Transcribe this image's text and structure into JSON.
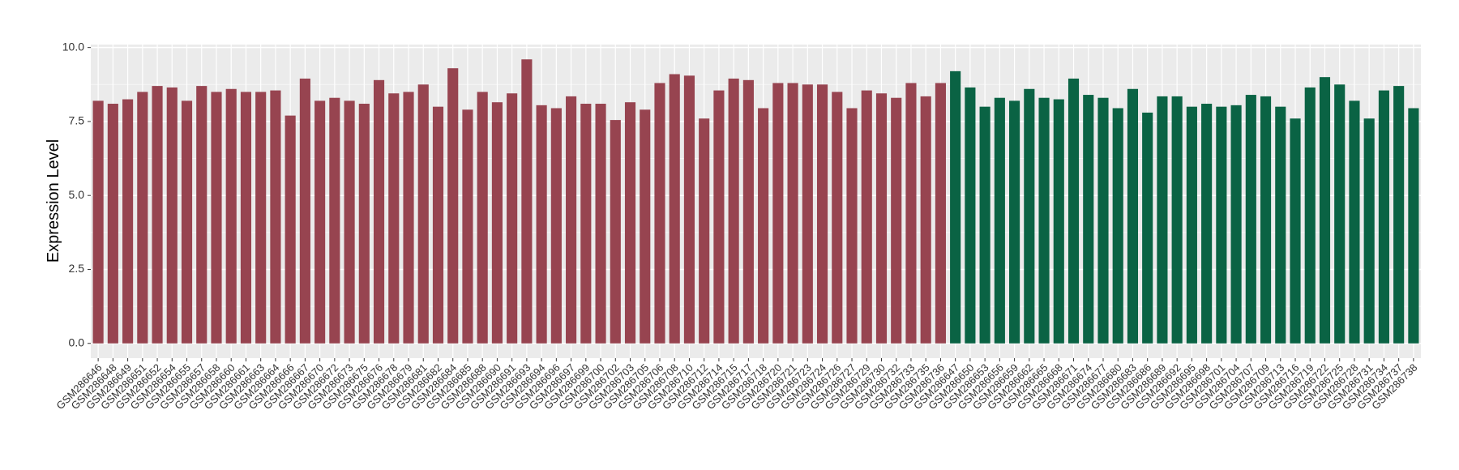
{
  "chart_data": {
    "type": "bar",
    "y_label": "Expression Level",
    "categories": [
      "GSM286646",
      "GSM286648",
      "GSM286649",
      "GSM286651",
      "GSM286652",
      "GSM286654",
      "GSM286655",
      "GSM286657",
      "GSM286658",
      "GSM286660",
      "GSM286661",
      "GSM286663",
      "GSM286664",
      "GSM286666",
      "GSM286667",
      "GSM286670",
      "GSM286672",
      "GSM286673",
      "GSM286675",
      "GSM286676",
      "GSM286678",
      "GSM286679",
      "GSM286681",
      "GSM286682",
      "GSM286684",
      "GSM286685",
      "GSM286688",
      "GSM286690",
      "GSM286691",
      "GSM286693",
      "GSM286694",
      "GSM286696",
      "GSM286697",
      "GSM286699",
      "GSM286700",
      "GSM286702",
      "GSM286703",
      "GSM286705",
      "GSM286706",
      "GSM286708",
      "GSM286710",
      "GSM286712",
      "GSM286714",
      "GSM286715",
      "GSM286717",
      "GSM286718",
      "GSM286720",
      "GSM286721",
      "GSM286723",
      "GSM286724",
      "GSM286726",
      "GSM286727",
      "GSM286729",
      "GSM286730",
      "GSM286732",
      "GSM286733",
      "GSM286735",
      "GSM286736",
      "GSM286647",
      "GSM286650",
      "GSM286653",
      "GSM286656",
      "GSM286659",
      "GSM286662",
      "GSM286665",
      "GSM286668",
      "GSM286671",
      "GSM286674",
      "GSM286677",
      "GSM286680",
      "GSM286683",
      "GSM286686",
      "GSM286689",
      "GSM286692",
      "GSM286695",
      "GSM286698",
      "GSM286701",
      "GSM286704",
      "GSM286707",
      "GSM286709",
      "GSM286713",
      "GSM286716",
      "GSM286719",
      "GSM286722",
      "GSM286725",
      "GSM286728",
      "GSM286731",
      "GSM286734",
      "GSM286737",
      "GSM286738"
    ],
    "values": [
      8.2,
      8.1,
      8.25,
      8.5,
      8.7,
      8.65,
      8.2,
      8.7,
      8.5,
      8.6,
      8.5,
      8.5,
      8.55,
      7.7,
      8.95,
      8.2,
      8.3,
      8.2,
      8.1,
      8.9,
      8.45,
      8.5,
      8.75,
      8.0,
      9.3,
      7.9,
      8.5,
      8.15,
      8.45,
      9.6,
      8.05,
      7.95,
      8.35,
      8.1,
      8.1,
      7.55,
      8.15,
      7.9,
      8.8,
      9.1,
      9.05,
      7.6,
      8.55,
      8.95,
      8.9,
      7.95,
      8.8,
      8.8,
      8.75,
      8.75,
      8.5,
      7.95,
      8.55,
      8.45,
      8.3,
      8.8,
      8.35,
      8.8,
      9.2,
      8.65,
      8.0,
      8.3,
      8.2,
      8.6,
      8.3,
      8.25,
      8.95,
      8.4,
      8.3,
      7.95,
      8.6,
      7.8,
      8.35,
      8.35,
      8.0,
      8.1,
      8.0,
      8.05,
      8.4,
      8.35,
      8.0,
      7.6,
      8.65,
      9.0,
      8.75,
      8.2,
      7.6,
      8.55,
      8.7,
      7.95
    ],
    "colors": [
      "#974450",
      "#974450",
      "#974450",
      "#974450",
      "#974450",
      "#974450",
      "#974450",
      "#974450",
      "#974450",
      "#974450",
      "#974450",
      "#974450",
      "#974450",
      "#974450",
      "#974450",
      "#974450",
      "#974450",
      "#974450",
      "#974450",
      "#974450",
      "#974450",
      "#974450",
      "#974450",
      "#974450",
      "#974450",
      "#974450",
      "#974450",
      "#974450",
      "#974450",
      "#974450",
      "#974450",
      "#974450",
      "#974450",
      "#974450",
      "#974450",
      "#974450",
      "#974450",
      "#974450",
      "#974450",
      "#974450",
      "#974450",
      "#974450",
      "#974450",
      "#974450",
      "#974450",
      "#974450",
      "#974450",
      "#974450",
      "#974450",
      "#974450",
      "#974450",
      "#974450",
      "#974450",
      "#974450",
      "#974450",
      "#974450",
      "#974450",
      "#974450",
      "#0a6344",
      "#0a6344",
      "#0a6344",
      "#0a6344",
      "#0a6344",
      "#0a6344",
      "#0a6344",
      "#0a6344",
      "#0a6344",
      "#0a6344",
      "#0a6344",
      "#0a6344",
      "#0a6344",
      "#0a6344",
      "#0a6344",
      "#0a6344",
      "#0a6344",
      "#0a6344",
      "#0a6344",
      "#0a6344",
      "#0a6344",
      "#0a6344",
      "#0a6344",
      "#0a6344",
      "#0a6344",
      "#0a6344",
      "#0a6344",
      "#0a6344",
      "#0a6344",
      "#0a6344",
      "#0a6344",
      "#0a6344"
    ],
    "ylim": [
      -0.5,
      10.1
    ],
    "yticks": [
      {
        "value": 0,
        "label": "0.0"
      },
      2.5,
      {
        "value": 5,
        "label": "5.0"
      },
      7.5,
      {
        "value": 10,
        "label": "10.0"
      }
    ],
    "grid": true
  }
}
